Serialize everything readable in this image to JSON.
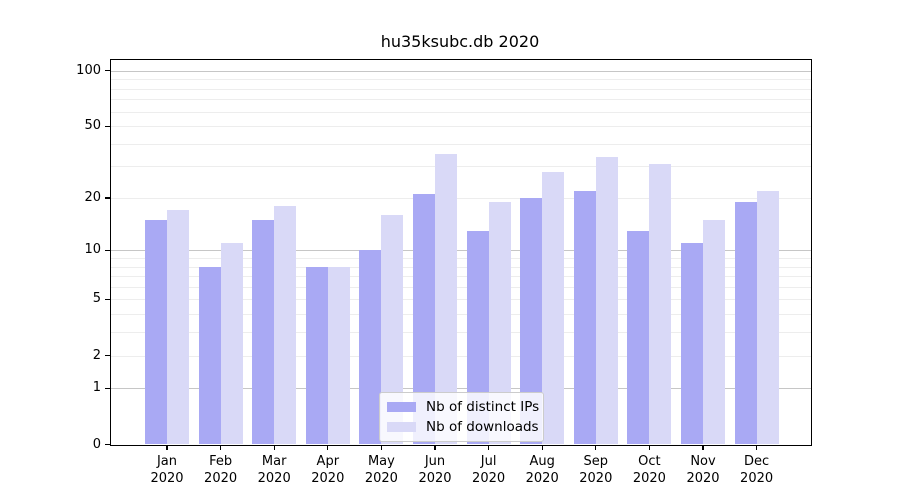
{
  "chart_data": {
    "type": "bar",
    "title": "hu35ksubc.db 2020",
    "categories": [
      "Jan",
      "Feb",
      "Mar",
      "Apr",
      "May",
      "Jun",
      "Jul",
      "Aug",
      "Sep",
      "Oct",
      "Nov",
      "Dec"
    ],
    "year": "2020",
    "series": [
      {
        "name": "Nb of distinct IPs",
        "color": "#a9a9f4",
        "values": [
          15,
          8,
          15,
          8,
          10,
          21,
          13,
          20,
          22,
          13,
          11,
          19
        ]
      },
      {
        "name": "Nb of downloads",
        "color": "#d9d9f7",
        "values": [
          17,
          11,
          18,
          8,
          16,
          35,
          19,
          28,
          34,
          31,
          15,
          22
        ]
      }
    ],
    "yscale": "log1p",
    "yticks": [
      0,
      1,
      2,
      5,
      10,
      20,
      50,
      100
    ],
    "major_gridlines": [
      1,
      10,
      100
    ],
    "minor_gridlines": [
      2,
      3,
      4,
      5,
      6,
      7,
      8,
      9,
      20,
      30,
      40,
      50,
      60,
      70,
      80,
      90
    ],
    "ylim": [
      0,
      114
    ],
    "grid": true,
    "legend_position": "lower center",
    "style": {
      "major_grid_color": "#c6c6c6",
      "minor_grid_color": "#ededed",
      "spine_color": "#000000",
      "background": "#ffffff"
    }
  }
}
